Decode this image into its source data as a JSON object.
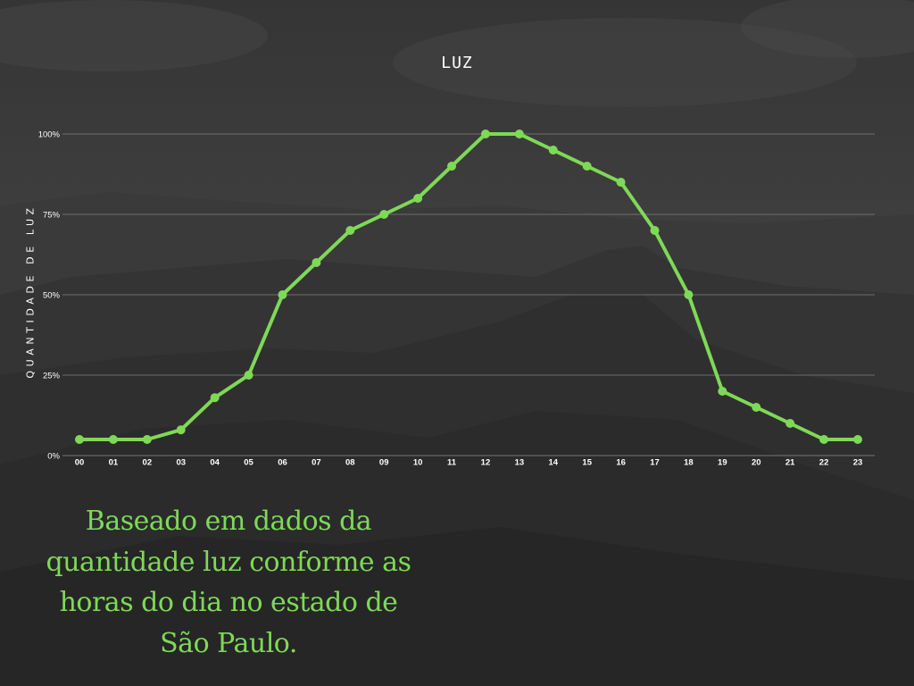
{
  "chart_data": {
    "type": "line",
    "title": "LUZ",
    "xlabel": "",
    "ylabel": "QUANTIDADE DE LUZ",
    "categories": [
      "00",
      "01",
      "02",
      "03",
      "04",
      "05",
      "06",
      "07",
      "08",
      "09",
      "10",
      "11",
      "12",
      "13",
      "14",
      "15",
      "16",
      "17",
      "18",
      "19",
      "20",
      "21",
      "22",
      "23"
    ],
    "y_ticks": [
      "0%",
      "25%",
      "50%",
      "75%",
      "100%"
    ],
    "ylim": [
      0,
      100
    ],
    "grid": true,
    "series": [
      {
        "values": [
          5,
          5,
          5,
          8,
          18,
          25,
          50,
          60,
          70,
          75,
          80,
          90,
          100,
          100,
          95,
          90,
          85,
          70,
          50,
          20,
          15,
          10,
          5,
          5
        ]
      }
    ]
  },
  "caption": "Baseado em dados da quantidade luz conforme as horas do dia no estado de São Paulo.",
  "colors": {
    "line": "#7ed957",
    "caption": "#7ed957",
    "text": "#ffffff",
    "grid": "#7a7a7a",
    "background": "#3a3a3a"
  }
}
